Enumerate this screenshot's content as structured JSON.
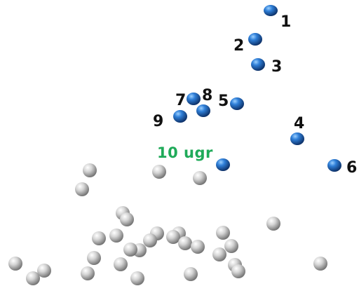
{
  "labels": {
    "n1": "1",
    "n2": "2",
    "n3": "3",
    "n4": "4",
    "n5": "5",
    "n6": "6",
    "n7": "7",
    "n8": "8",
    "n9": "9",
    "highlight": "10 ugr"
  },
  "colors": {
    "label": "#111111",
    "highlight": "#1faa59",
    "blue_light": "#6fb0f5",
    "blue_mid": "#1f66c2",
    "blue_dark": "#0b2f66",
    "silver_light": "#ffffff",
    "silver_mid": "#c9c9c9",
    "silver_dark": "#6e6e6e"
  }
}
